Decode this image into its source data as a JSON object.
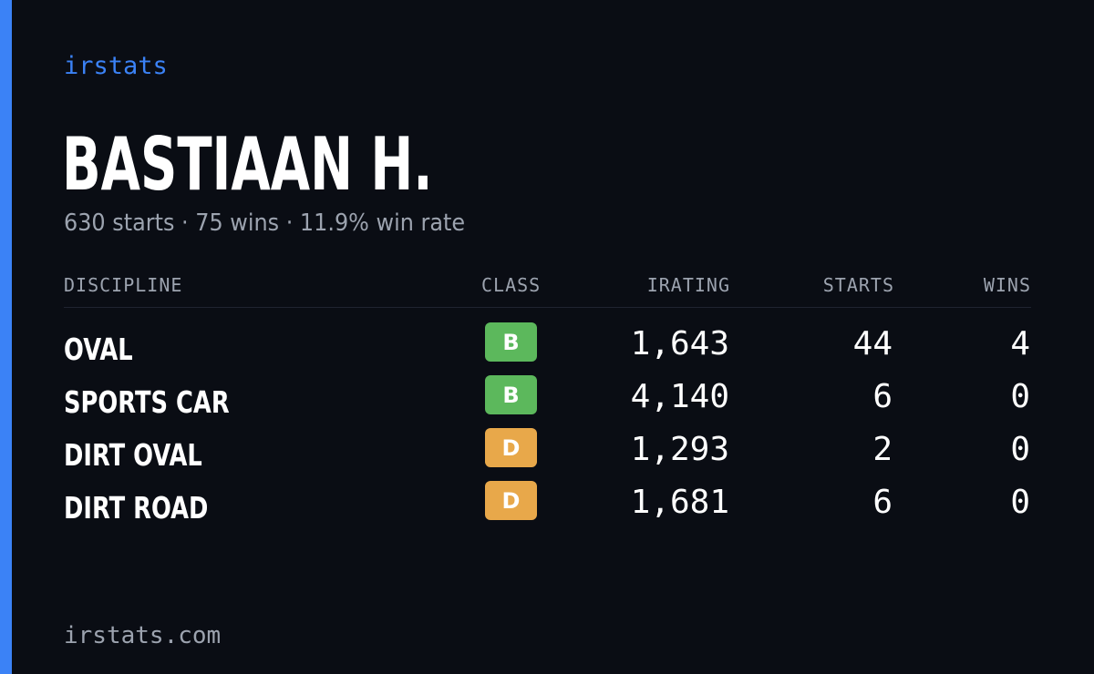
{
  "brand": "irstats",
  "driver": {
    "name": "BASTIAAN H.",
    "summary": "630 starts · 75 wins · 11.9% win rate"
  },
  "table": {
    "headers": {
      "discipline": "DISCIPLINE",
      "class": "CLASS",
      "irating": "IRATING",
      "starts": "STARTS",
      "wins": "WINS"
    },
    "rows": [
      {
        "discipline": "OVAL",
        "class": "B",
        "class_color": "#5cb85c",
        "irating": "1,643",
        "starts": "44",
        "wins": "4"
      },
      {
        "discipline": "SPORTS CAR",
        "class": "B",
        "class_color": "#5cb85c",
        "irating": "4,140",
        "starts": "6",
        "wins": "0"
      },
      {
        "discipline": "DIRT OVAL",
        "class": "D",
        "class_color": "#e8a84a",
        "irating": "1,293",
        "starts": "2",
        "wins": "0"
      },
      {
        "discipline": "DIRT ROAD",
        "class": "D",
        "class_color": "#e8a84a",
        "irating": "1,681",
        "starts": "6",
        "wins": "0"
      }
    ]
  },
  "footer": "irstats.com",
  "colors": {
    "background": "#0a0d14",
    "accent": "#3b82f6",
    "muted_text": "#9ca3af"
  }
}
